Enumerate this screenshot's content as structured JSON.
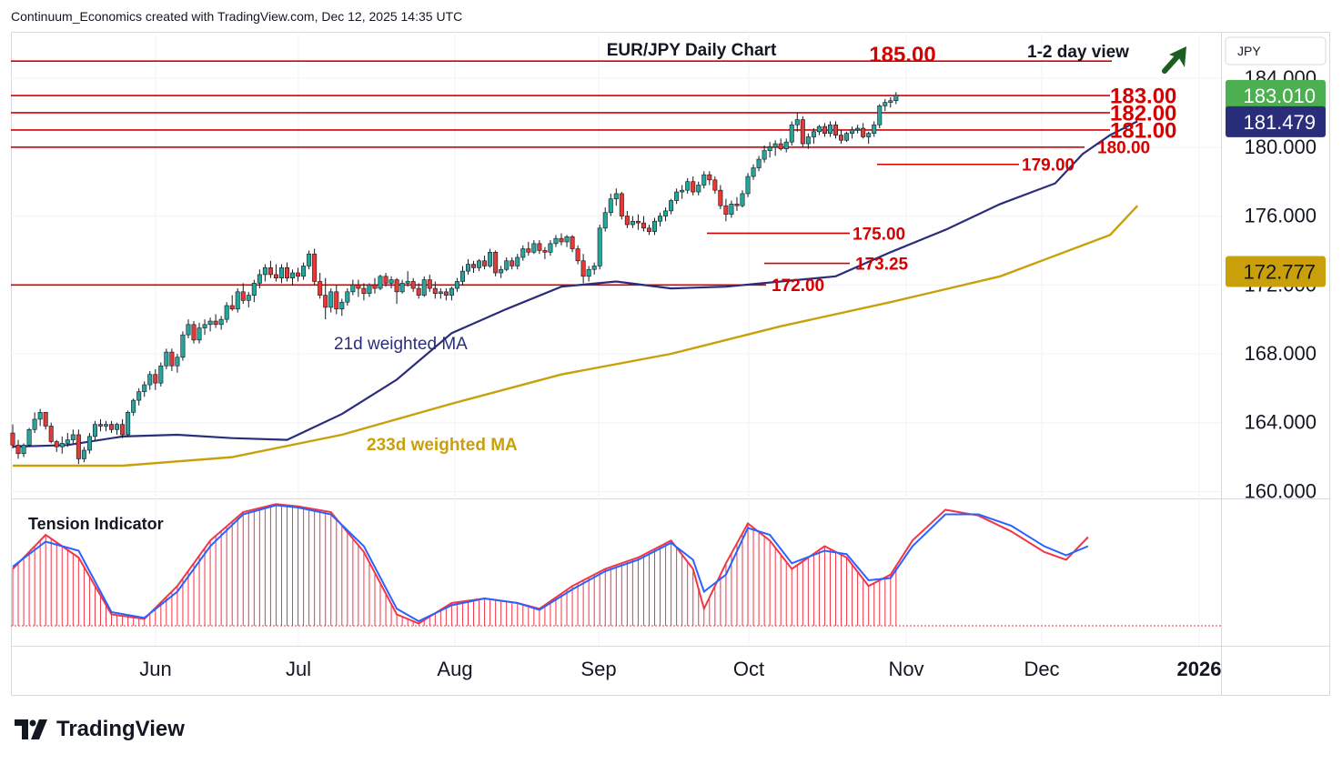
{
  "header": {
    "attribution": "Continuum_Economics created with TradingView.com, Dec 12, 2025 14:35 UTC"
  },
  "footer": {
    "brand": "TradingView"
  },
  "colors": {
    "up_candle": "#26a69a",
    "down_candle": "#e53935",
    "level_line": "#d50000",
    "ma21": "#2a2e7a",
    "ma233": "#c9a00a",
    "tension_red": "#f23645",
    "tension_blue": "#2962ff",
    "tag_green": "#4caf50",
    "tag_navy": "#2a2e7a",
    "tag_gold": "#c9a00a",
    "arrow": "#1b5e20"
  },
  "chart_data": {
    "type": "candlestick",
    "title": "EUR/JPY Daily Chart",
    "view": "1-2 day view",
    "view_arrow": "up-arrow-icon",
    "target_label": "185.00",
    "currency_label": "JPY",
    "x_ticks": [
      "Jun",
      "Jul",
      "Aug",
      "Sep",
      "Oct",
      "Nov",
      "Dec",
      "2026"
    ],
    "y_ticks": [
      "184.000",
      "180.000",
      "176.000",
      "172.000",
      "168.000",
      "164.000",
      "160.000"
    ],
    "ylim": [
      159.6,
      186.7
    ],
    "price_tags": [
      {
        "label": "183.010",
        "value": 183.01,
        "color": "tag_green"
      },
      {
        "label": "181.479",
        "value": 181.479,
        "color": "tag_navy"
      },
      {
        "label": "172.777",
        "value": 172.777,
        "color": "tag_gold"
      }
    ],
    "levels": [
      {
        "label": "185.00",
        "value": 185.0,
        "style": "top"
      },
      {
        "label": "183.00",
        "value": 183.0,
        "style": "big"
      },
      {
        "label": "182.00",
        "value": 182.0,
        "style": "big"
      },
      {
        "label": "181.00",
        "value": 181.0,
        "style": "big"
      },
      {
        "label": "180.00",
        "value": 180.0,
        "style": "small"
      },
      {
        "label": "179.00",
        "value": 179.0,
        "style": "small"
      },
      {
        "label": "175.00",
        "value": 175.0,
        "style": "small"
      },
      {
        "label": "173.25",
        "value": 173.25,
        "style": "small"
      },
      {
        "label": "172.00",
        "value": 172.0,
        "style": "small"
      }
    ],
    "ma_labels": {
      "ma21": "21d weighted MA",
      "ma233": "233d weighted MA"
    },
    "ma21": [
      [
        0,
        162.6
      ],
      [
        10,
        162.7
      ],
      [
        20,
        163.2
      ],
      [
        30,
        163.3
      ],
      [
        40,
        163.1
      ],
      [
        50,
        163.0
      ],
      [
        60,
        164.5
      ],
      [
        70,
        166.5
      ],
      [
        80,
        169.2
      ],
      [
        90,
        170.6
      ],
      [
        100,
        171.9
      ],
      [
        110,
        172.2
      ],
      [
        120,
        171.8
      ],
      [
        130,
        171.9
      ],
      [
        140,
        172.2
      ],
      [
        150,
        172.5
      ],
      [
        160,
        173.9
      ],
      [
        170,
        175.2
      ],
      [
        180,
        176.7
      ],
      [
        190,
        177.9
      ],
      [
        195,
        179.6
      ],
      [
        200,
        180.7
      ],
      [
        205,
        181.5
      ]
    ],
    "ma233": [
      [
        0,
        161.5
      ],
      [
        20,
        161.5
      ],
      [
        40,
        162.0
      ],
      [
        60,
        163.3
      ],
      [
        80,
        165.1
      ],
      [
        100,
        166.8
      ],
      [
        120,
        168.0
      ],
      [
        140,
        169.6
      ],
      [
        160,
        171.0
      ],
      [
        180,
        172.5
      ],
      [
        200,
        174.9
      ],
      [
        205,
        176.6
      ]
    ],
    "tension_label": "Tension Indicator",
    "tension_red": [
      [
        0,
        0.5
      ],
      [
        6,
        0.8
      ],
      [
        12,
        0.6
      ],
      [
        18,
        0.1
      ],
      [
        24,
        0.06
      ],
      [
        30,
        0.35
      ],
      [
        36,
        0.75
      ],
      [
        42,
        1.0
      ],
      [
        48,
        1.07
      ],
      [
        52,
        1.05
      ],
      [
        58,
        1.0
      ],
      [
        64,
        0.65
      ],
      [
        70,
        0.1
      ],
      [
        74,
        0.02
      ],
      [
        80,
        0.2
      ],
      [
        86,
        0.24
      ],
      [
        92,
        0.2
      ],
      [
        96,
        0.15
      ],
      [
        102,
        0.35
      ],
      [
        108,
        0.5
      ],
      [
        114,
        0.6
      ],
      [
        120,
        0.75
      ],
      [
        124,
        0.5
      ],
      [
        126,
        0.15
      ],
      [
        130,
        0.55
      ],
      [
        134,
        0.9
      ],
      [
        138,
        0.75
      ],
      [
        142,
        0.5
      ],
      [
        148,
        0.7
      ],
      [
        152,
        0.6
      ],
      [
        156,
        0.35
      ],
      [
        160,
        0.45
      ],
      [
        164,
        0.75
      ],
      [
        170,
        1.02
      ],
      [
        176,
        0.97
      ],
      [
        182,
        0.83
      ],
      [
        188,
        0.65
      ],
      [
        192,
        0.58
      ],
      [
        196,
        0.78
      ]
    ],
    "tension_blue": [
      [
        0,
        0.52
      ],
      [
        6,
        0.74
      ],
      [
        12,
        0.66
      ],
      [
        18,
        0.12
      ],
      [
        24,
        0.07
      ],
      [
        30,
        0.3
      ],
      [
        36,
        0.7
      ],
      [
        42,
        0.98
      ],
      [
        48,
        1.06
      ],
      [
        52,
        1.04
      ],
      [
        58,
        0.98
      ],
      [
        64,
        0.7
      ],
      [
        70,
        0.15
      ],
      [
        74,
        0.04
      ],
      [
        80,
        0.18
      ],
      [
        86,
        0.24
      ],
      [
        92,
        0.2
      ],
      [
        96,
        0.14
      ],
      [
        102,
        0.32
      ],
      [
        108,
        0.48
      ],
      [
        114,
        0.58
      ],
      [
        120,
        0.73
      ],
      [
        124,
        0.58
      ],
      [
        126,
        0.3
      ],
      [
        130,
        0.45
      ],
      [
        134,
        0.86
      ],
      [
        138,
        0.8
      ],
      [
        142,
        0.55
      ],
      [
        148,
        0.66
      ],
      [
        152,
        0.63
      ],
      [
        156,
        0.4
      ],
      [
        160,
        0.42
      ],
      [
        164,
        0.7
      ],
      [
        170,
        0.98
      ],
      [
        176,
        0.98
      ],
      [
        182,
        0.88
      ],
      [
        188,
        0.7
      ],
      [
        192,
        0.62
      ],
      [
        196,
        0.7
      ]
    ],
    "candles": [
      [
        163.4,
        163.9,
        162.5,
        162.7
      ],
      [
        162.7,
        163.0,
        161.9,
        162.2
      ],
      [
        162.2,
        162.8,
        162.0,
        162.7
      ],
      [
        162.7,
        163.7,
        162.6,
        163.6
      ],
      [
        163.6,
        164.6,
        163.4,
        164.2
      ],
      [
        164.2,
        164.8,
        163.8,
        164.6
      ],
      [
        164.6,
        164.6,
        163.6,
        163.8
      ],
      [
        163.8,
        164.0,
        162.8,
        162.9
      ],
      [
        162.9,
        163.0,
        162.3,
        162.6
      ],
      [
        162.6,
        163.2,
        162.2,
        162.8
      ],
      [
        162.8,
        163.4,
        162.6,
        163.0
      ],
      [
        163.0,
        163.6,
        162.8,
        163.3
      ],
      [
        163.3,
        163.6,
        161.6,
        161.9
      ],
      [
        161.9,
        162.6,
        161.7,
        162.4
      ],
      [
        162.4,
        163.4,
        162.2,
        163.2
      ],
      [
        163.2,
        164.1,
        163.0,
        163.9
      ],
      [
        163.9,
        164.2,
        163.5,
        163.8
      ],
      [
        163.8,
        164.1,
        163.5,
        163.9
      ],
      [
        163.9,
        164.1,
        163.4,
        163.6
      ],
      [
        163.6,
        164.0,
        163.3,
        163.9
      ],
      [
        163.9,
        164.2,
        163.1,
        163.3
      ],
      [
        163.3,
        164.7,
        163.2,
        164.6
      ],
      [
        164.6,
        165.4,
        164.4,
        165.3
      ],
      [
        165.3,
        166.0,
        165.0,
        165.8
      ],
      [
        165.8,
        166.4,
        165.5,
        166.2
      ],
      [
        166.2,
        167.0,
        165.9,
        166.8
      ],
      [
        166.8,
        167.1,
        165.9,
        166.3
      ],
      [
        166.3,
        167.5,
        166.1,
        167.3
      ],
      [
        167.3,
        168.3,
        167.1,
        168.1
      ],
      [
        168.1,
        168.3,
        167.0,
        167.3
      ],
      [
        167.3,
        168.0,
        166.9,
        167.8
      ],
      [
        167.8,
        169.3,
        167.6,
        169.1
      ],
      [
        169.1,
        170.0,
        168.9,
        169.7
      ],
      [
        169.7,
        169.9,
        168.6,
        168.8
      ],
      [
        168.8,
        169.8,
        168.6,
        169.5
      ],
      [
        169.5,
        170.0,
        169.1,
        169.7
      ],
      [
        169.7,
        170.1,
        169.3,
        169.9
      ],
      [
        169.9,
        170.3,
        169.5,
        169.7
      ],
      [
        169.7,
        170.2,
        169.4,
        170.0
      ],
      [
        170.0,
        171.0,
        169.8,
        170.8
      ],
      [
        170.8,
        171.4,
        170.5,
        170.6
      ],
      [
        170.6,
        171.8,
        170.4,
        171.6
      ],
      [
        171.6,
        172.1,
        170.9,
        171.1
      ],
      [
        171.1,
        171.6,
        170.7,
        171.4
      ],
      [
        171.4,
        172.3,
        171.0,
        172.1
      ],
      [
        172.1,
        172.9,
        171.8,
        172.6
      ],
      [
        172.6,
        173.2,
        172.2,
        173.0
      ],
      [
        173.0,
        173.4,
        172.4,
        172.6
      ],
      [
        172.6,
        173.2,
        172.2,
        172.4
      ],
      [
        172.4,
        173.2,
        172.1,
        173.0
      ],
      [
        173.0,
        173.3,
        172.2,
        172.4
      ],
      [
        172.4,
        172.9,
        172.0,
        172.7
      ],
      [
        172.7,
        173.0,
        172.2,
        172.5
      ],
      [
        172.5,
        173.3,
        172.3,
        173.1
      ],
      [
        173.1,
        174.0,
        172.9,
        173.8
      ],
      [
        173.8,
        174.1,
        172.0,
        172.2
      ],
      [
        172.2,
        172.7,
        171.2,
        171.4
      ],
      [
        171.4,
        172.4,
        170.0,
        170.7
      ],
      [
        170.7,
        171.8,
        170.4,
        171.6
      ],
      [
        171.6,
        172.0,
        170.3,
        170.6
      ],
      [
        170.6,
        171.2,
        170.2,
        171.0
      ],
      [
        171.0,
        171.8,
        170.8,
        171.6
      ],
      [
        171.6,
        172.3,
        171.4,
        172.0
      ],
      [
        172.0,
        172.3,
        171.3,
        171.8
      ],
      [
        171.8,
        172.1,
        171.1,
        171.5
      ],
      [
        171.5,
        172.1,
        171.3,
        172.0
      ],
      [
        172.0,
        172.4,
        171.5,
        171.8
      ],
      [
        171.8,
        172.6,
        171.7,
        172.5
      ],
      [
        172.5,
        172.7,
        171.9,
        172.1
      ],
      [
        172.1,
        172.5,
        171.8,
        172.3
      ],
      [
        172.3,
        172.4,
        170.9,
        171.6
      ],
      [
        171.6,
        172.3,
        171.5,
        172.1
      ],
      [
        172.1,
        172.8,
        171.9,
        172.2
      ],
      [
        172.2,
        172.4,
        171.6,
        171.8
      ],
      [
        171.8,
        172.1,
        171.2,
        171.4
      ],
      [
        171.4,
        172.5,
        171.3,
        172.3
      ],
      [
        172.3,
        172.6,
        171.6,
        171.8
      ],
      [
        171.8,
        172.2,
        171.2,
        171.5
      ],
      [
        171.5,
        171.8,
        171.2,
        171.6
      ],
      [
        171.6,
        171.8,
        171.1,
        171.4
      ],
      [
        171.4,
        171.9,
        171.1,
        171.8
      ],
      [
        171.8,
        172.4,
        171.6,
        172.2
      ],
      [
        172.2,
        173.1,
        172.0,
        172.8
      ],
      [
        172.8,
        173.5,
        172.6,
        173.2
      ],
      [
        173.2,
        173.4,
        172.7,
        173.0
      ],
      [
        173.0,
        173.5,
        172.8,
        173.4
      ],
      [
        173.4,
        173.7,
        172.9,
        173.1
      ],
      [
        173.1,
        174.1,
        173.0,
        173.9
      ],
      [
        173.9,
        174.0,
        172.5,
        172.7
      ],
      [
        172.7,
        173.1,
        172.4,
        172.9
      ],
      [
        172.9,
        173.6,
        172.8,
        173.4
      ],
      [
        173.4,
        173.6,
        172.9,
        173.1
      ],
      [
        173.1,
        173.8,
        172.9,
        173.6
      ],
      [
        173.6,
        174.3,
        173.4,
        174.1
      ],
      [
        174.1,
        174.5,
        173.7,
        173.9
      ],
      [
        173.9,
        174.6,
        173.8,
        174.4
      ],
      [
        174.4,
        174.6,
        173.8,
        174.0
      ],
      [
        174.0,
        174.2,
        173.5,
        173.9
      ],
      [
        173.9,
        174.6,
        173.7,
        174.4
      ],
      [
        174.4,
        174.9,
        174.2,
        174.7
      ],
      [
        174.7,
        175.0,
        174.3,
        174.5
      ],
      [
        174.5,
        174.9,
        174.2,
        174.8
      ],
      [
        174.8,
        174.9,
        173.9,
        174.1
      ],
      [
        174.1,
        174.3,
        173.2,
        173.4
      ],
      [
        173.4,
        173.8,
        172.1,
        172.5
      ],
      [
        172.5,
        173.1,
        172.2,
        172.9
      ],
      [
        172.9,
        173.3,
        172.6,
        173.1
      ],
      [
        173.1,
        175.5,
        172.9,
        175.3
      ],
      [
        175.3,
        176.5,
        175.1,
        176.2
      ],
      [
        176.2,
        177.3,
        176.0,
        177.0
      ],
      [
        177.0,
        177.6,
        176.6,
        177.3
      ],
      [
        177.3,
        177.4,
        175.8,
        176.0
      ],
      [
        176.0,
        176.3,
        175.3,
        175.5
      ],
      [
        175.5,
        176.0,
        175.3,
        175.7
      ],
      [
        175.7,
        176.1,
        175.2,
        175.6
      ],
      [
        175.6,
        176.0,
        175.1,
        175.3
      ],
      [
        175.3,
        175.5,
        174.9,
        175.1
      ],
      [
        175.1,
        175.9,
        174.9,
        175.7
      ],
      [
        175.7,
        176.2,
        175.4,
        176.0
      ],
      [
        176.0,
        176.5,
        175.7,
        176.3
      ],
      [
        176.3,
        177.0,
        176.1,
        176.9
      ],
      [
        176.9,
        177.6,
        176.7,
        177.4
      ],
      [
        177.4,
        177.8,
        177.0,
        177.5
      ],
      [
        177.5,
        178.2,
        177.3,
        178.0
      ],
      [
        178.0,
        178.3,
        177.2,
        177.4
      ],
      [
        177.4,
        178.0,
        177.2,
        177.8
      ],
      [
        177.8,
        178.6,
        177.6,
        178.4
      ],
      [
        178.4,
        178.6,
        177.8,
        178.1
      ],
      [
        178.1,
        178.3,
        177.3,
        177.5
      ],
      [
        177.5,
        177.8,
        176.4,
        176.6
      ],
      [
        176.6,
        177.0,
        175.7,
        176.1
      ],
      [
        176.1,
        176.9,
        175.9,
        176.7
      ],
      [
        176.7,
        177.1,
        176.3,
        176.6
      ],
      [
        176.6,
        177.5,
        176.5,
        177.3
      ],
      [
        177.3,
        178.5,
        177.1,
        178.3
      ],
      [
        178.3,
        179.0,
        178.1,
        178.8
      ],
      [
        178.8,
        179.5,
        178.6,
        179.3
      ],
      [
        179.3,
        180.1,
        179.1,
        179.8
      ],
      [
        179.8,
        180.3,
        179.4,
        180.0
      ],
      [
        180.0,
        180.4,
        179.5,
        180.2
      ],
      [
        180.2,
        180.5,
        179.8,
        179.9
      ],
      [
        179.9,
        180.5,
        179.7,
        180.3
      ],
      [
        180.3,
        181.5,
        180.1,
        181.3
      ],
      [
        181.3,
        182.0,
        180.9,
        181.6
      ],
      [
        181.6,
        181.8,
        180.0,
        180.2
      ],
      [
        180.2,
        180.8,
        179.9,
        180.6
      ],
      [
        180.6,
        181.1,
        180.2,
        180.9
      ],
      [
        180.9,
        181.3,
        180.7,
        181.2
      ],
      [
        181.2,
        181.4,
        180.6,
        180.8
      ],
      [
        180.8,
        181.5,
        180.6,
        181.3
      ],
      [
        181.3,
        181.5,
        180.5,
        180.7
      ],
      [
        180.7,
        181.0,
        180.2,
        180.4
      ],
      [
        180.4,
        180.9,
        180.3,
        180.8
      ],
      [
        180.8,
        181.2,
        180.5,
        181.0
      ],
      [
        181.0,
        181.3,
        180.8,
        181.1
      ],
      [
        181.1,
        181.4,
        180.5,
        180.6
      ],
      [
        180.6,
        180.9,
        180.2,
        180.8
      ],
      [
        180.8,
        181.5,
        180.6,
        181.3
      ],
      [
        181.3,
        182.5,
        181.1,
        182.4
      ],
      [
        182.4,
        182.8,
        182.1,
        182.6
      ],
      [
        182.6,
        182.9,
        182.3,
        182.7
      ],
      [
        182.7,
        183.2,
        182.5,
        183.01
      ]
    ]
  }
}
